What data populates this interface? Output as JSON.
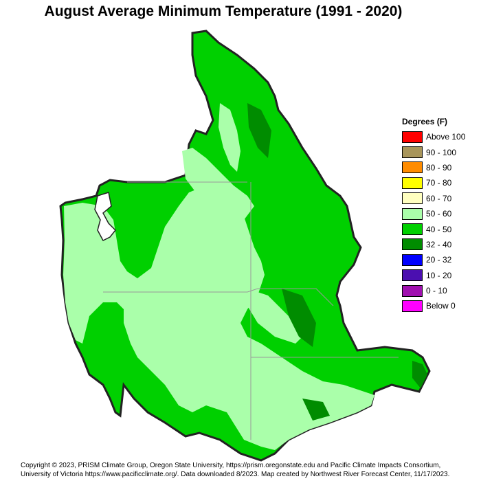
{
  "title": "August Average Minimum Temperature (1991 - 2020)",
  "legend": {
    "title": "Degrees (F)",
    "items": [
      {
        "label": "Above 100",
        "color": "#ff0000"
      },
      {
        "label": "90 - 100",
        "color": "#a8955a"
      },
      {
        "label": "80 - 90",
        "color": "#ff8c00"
      },
      {
        "label": "70 - 80",
        "color": "#ffff00"
      },
      {
        "label": "60 - 70",
        "color": "#ffffc0"
      },
      {
        "label": "50 - 60",
        "color": "#aaffaa"
      },
      {
        "label": "40 - 50",
        "color": "#00d000"
      },
      {
        "label": "32 - 40",
        "color": "#008c00"
      },
      {
        "label": "20 - 32",
        "color": "#0000ff"
      },
      {
        "label": "10 - 20",
        "color": "#4b0fb0"
      },
      {
        "label": "0 - 10",
        "color": "#a010b0"
      },
      {
        "label": "Below 0",
        "color": "#ff00ff"
      }
    ]
  },
  "footer": {
    "line1": "Copyright © 2023, PRISM Climate Group, Oregon State University, https://prism.oregonstate.edu and Pacific Climate Impacts Consortium,",
    "line2": "University of Victoria https://www.pacificclimate.org/.  Data downloaded 8/2023. Map created by Northwest River Forecast Center, 11/17/2023."
  },
  "map_colors": {
    "warm": "#aaffaa",
    "mid": "#00d000",
    "cool": "#008c00",
    "outline": "#222222",
    "borders": "#999999"
  }
}
